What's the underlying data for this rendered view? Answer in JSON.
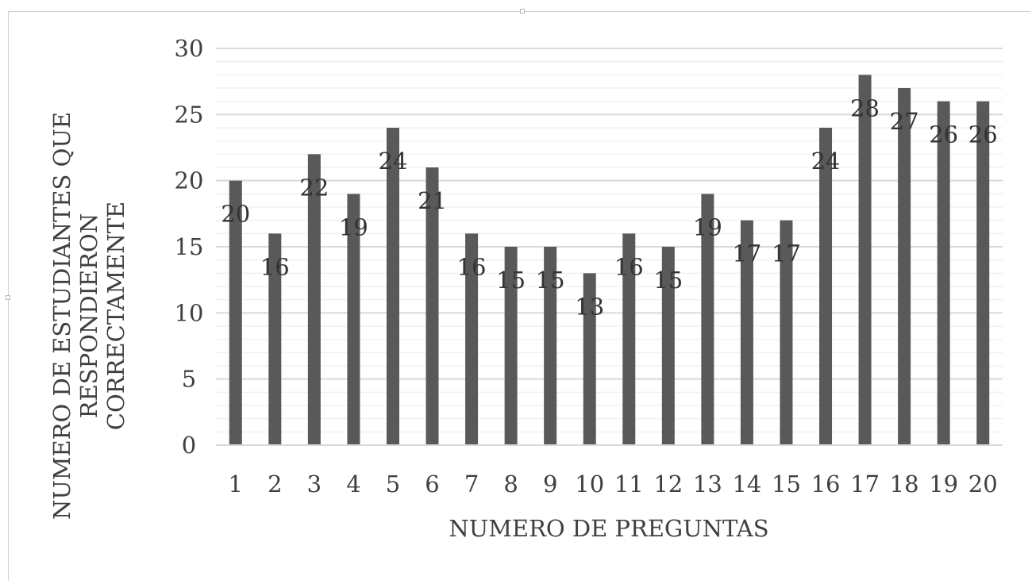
{
  "chart_data": {
    "type": "bar",
    "categories": [
      "1",
      "2",
      "3",
      "4",
      "5",
      "6",
      "7",
      "8",
      "9",
      "10",
      "11",
      "12",
      "13",
      "14",
      "15",
      "16",
      "17",
      "18",
      "19",
      "20"
    ],
    "series": [
      {
        "values": [
          20,
          16,
          22,
          19,
          24,
          21,
          16,
          15,
          15,
          13,
          16,
          15,
          19,
          17,
          17,
          24,
          28,
          27,
          26,
          26
        ]
      }
    ],
    "title": "",
    "xlabel": "NUMERO DE PREGUNTAS",
    "ylabel_lines": [
      "NUMERO DE ESTUDIANTES QUE",
      "RESPONDIERON",
      "CORRECTAMENTE"
    ],
    "ylim": [
      0,
      30
    ],
    "yticks": [
      "0",
      "5",
      "10",
      "15",
      "20",
      "25",
      "30"
    ],
    "major_step": 5,
    "minor_step": 1,
    "grid": true,
    "legend": "none",
    "data_labels": true,
    "colors": {
      "bar": "#595959",
      "grid_major": "#d9d9d9",
      "grid_minor": "#f0f0f0",
      "text": "#404040",
      "label": "#333333"
    }
  }
}
